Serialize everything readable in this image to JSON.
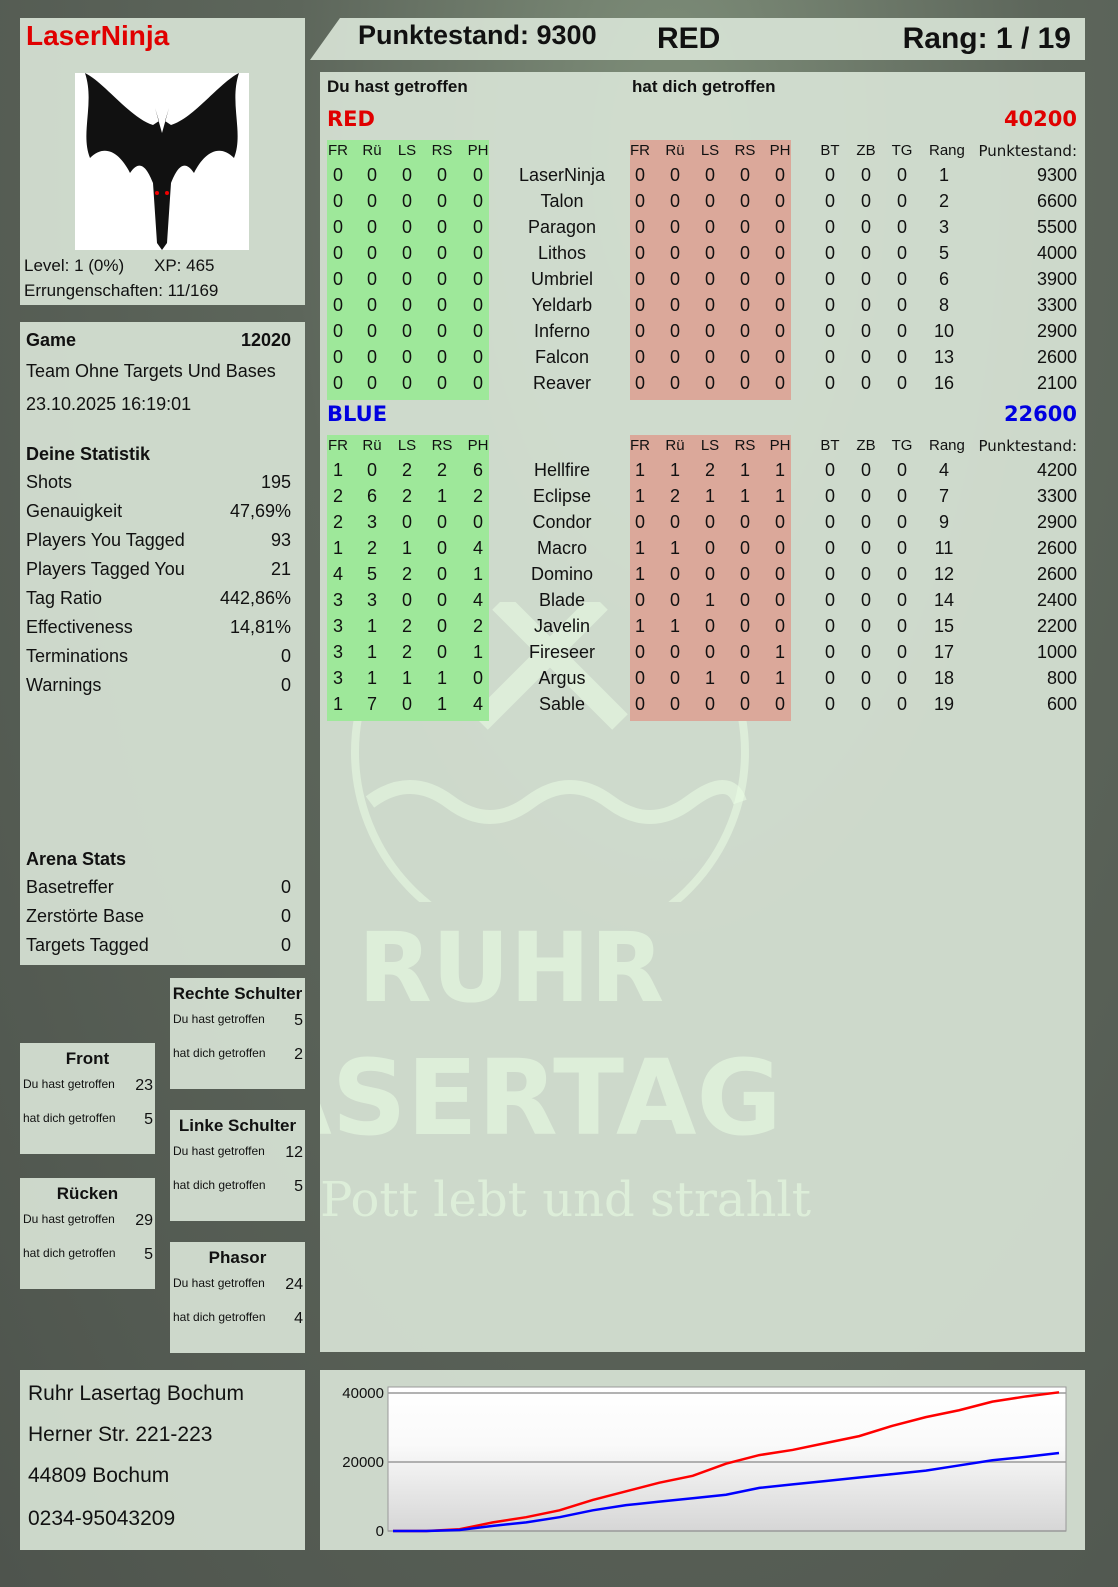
{
  "player": {
    "name": "LaserNinja",
    "level": "Level: 1 (0%)",
    "xp": "XP: 465",
    "achievements": "Errungenschaften: 11/169"
  },
  "header": {
    "score": "Punktestand: 9300",
    "team": "RED",
    "rank": "Rang: 1 / 19"
  },
  "game": {
    "label": "Game",
    "id": "12020",
    "mode": "Team Ohne Targets Und Bases",
    "datetime": "23.10.2025 16:19:01"
  },
  "stats": {
    "title": "Deine Statistik",
    "items": [
      {
        "label": "Shots",
        "value": "195"
      },
      {
        "label": "Genauigkeit",
        "value": "47,69%"
      },
      {
        "label": "Players You Tagged",
        "value": "93"
      },
      {
        "label": "Players Tagged You",
        "value": "21"
      },
      {
        "label": "Tag Ratio",
        "value": "442,86%"
      },
      {
        "label": "Effectiveness",
        "value": "14,81%"
      },
      {
        "label": "Terminations",
        "value": "0"
      },
      {
        "label": "Warnings",
        "value": "0"
      }
    ]
  },
  "arena": {
    "title": "Arena Stats",
    "items": [
      {
        "label": "Basetreffer",
        "value": "0"
      },
      {
        "label": "Zerstörte Base",
        "value": "0"
      },
      {
        "label": "Targets Tagged",
        "value": "0"
      }
    ]
  },
  "zones": [
    {
      "name": "Rechte Schulter",
      "hit_label": "Du hast getroffen",
      "hit": "5",
      "got_label": "hat dich getroffen",
      "got": "2"
    },
    {
      "name": "Front",
      "hit_label": "Du hast getroffen",
      "hit": "23",
      "got_label": "hat dich getroffen",
      "got": "5"
    },
    {
      "name": "Linke Schulter",
      "hit_label": "Du hast getroffen",
      "hit": "12",
      "got_label": "hat dich getroffen",
      "got": "5"
    },
    {
      "name": "Rücken",
      "hit_label": "Du hast getroffen",
      "hit": "29",
      "got_label": "hat dich getroffen",
      "got": "5"
    },
    {
      "name": "Phasor",
      "hit_label": "Du hast getroffen",
      "hit": "24",
      "got_label": "hat dich getroffen",
      "got": "4"
    }
  ],
  "address": [
    "Ruhr Lasertag Bochum",
    "Herner Str. 221-223",
    "44809 Bochum",
    "0234-95043209"
  ],
  "table": {
    "you_hit": "Du hast getroffen",
    "hit_you": "hat dich getroffen",
    "cols": [
      "FR",
      "Rü",
      "LS",
      "RS",
      "PH"
    ],
    "extra_cols": [
      "BT",
      "ZB",
      "TG",
      "Rang",
      "Punktestand:"
    ],
    "teams": [
      {
        "name": "RED",
        "total": "40200",
        "color": "#e00000",
        "players": [
          {
            "name": "LaserNinja",
            "hit": [
              "0",
              "0",
              "0",
              "0",
              "0"
            ],
            "got": [
              "0",
              "0",
              "0",
              "0",
              "0"
            ],
            "extra": [
              "0",
              "0",
              "0",
              "1",
              "9300"
            ]
          },
          {
            "name": "Talon",
            "hit": [
              "0",
              "0",
              "0",
              "0",
              "0"
            ],
            "got": [
              "0",
              "0",
              "0",
              "0",
              "0"
            ],
            "extra": [
              "0",
              "0",
              "0",
              "2",
              "6600"
            ]
          },
          {
            "name": "Paragon",
            "hit": [
              "0",
              "0",
              "0",
              "0",
              "0"
            ],
            "got": [
              "0",
              "0",
              "0",
              "0",
              "0"
            ],
            "extra": [
              "0",
              "0",
              "0",
              "3",
              "5500"
            ]
          },
          {
            "name": "Lithos",
            "hit": [
              "0",
              "0",
              "0",
              "0",
              "0"
            ],
            "got": [
              "0",
              "0",
              "0",
              "0",
              "0"
            ],
            "extra": [
              "0",
              "0",
              "0",
              "5",
              "4000"
            ]
          },
          {
            "name": "Umbriel",
            "hit": [
              "0",
              "0",
              "0",
              "0",
              "0"
            ],
            "got": [
              "0",
              "0",
              "0",
              "0",
              "0"
            ],
            "extra": [
              "0",
              "0",
              "0",
              "6",
              "3900"
            ]
          },
          {
            "name": "Yeldarb",
            "hit": [
              "0",
              "0",
              "0",
              "0",
              "0"
            ],
            "got": [
              "0",
              "0",
              "0",
              "0",
              "0"
            ],
            "extra": [
              "0",
              "0",
              "0",
              "8",
              "3300"
            ]
          },
          {
            "name": "Inferno",
            "hit": [
              "0",
              "0",
              "0",
              "0",
              "0"
            ],
            "got": [
              "0",
              "0",
              "0",
              "0",
              "0"
            ],
            "extra": [
              "0",
              "0",
              "0",
              "10",
              "2900"
            ]
          },
          {
            "name": "Falcon",
            "hit": [
              "0",
              "0",
              "0",
              "0",
              "0"
            ],
            "got": [
              "0",
              "0",
              "0",
              "0",
              "0"
            ],
            "extra": [
              "0",
              "0",
              "0",
              "13",
              "2600"
            ]
          },
          {
            "name": "Reaver",
            "hit": [
              "0",
              "0",
              "0",
              "0",
              "0"
            ],
            "got": [
              "0",
              "0",
              "0",
              "0",
              "0"
            ],
            "extra": [
              "0",
              "0",
              "0",
              "16",
              "2100"
            ]
          }
        ]
      },
      {
        "name": "BLUE",
        "total": "22600",
        "color": "#0000e0",
        "players": [
          {
            "name": "Hellfire",
            "hit": [
              "1",
              "0",
              "2",
              "2",
              "6"
            ],
            "got": [
              "1",
              "1",
              "2",
              "1",
              "1"
            ],
            "extra": [
              "0",
              "0",
              "0",
              "4",
              "4200"
            ]
          },
          {
            "name": "Eclipse",
            "hit": [
              "2",
              "6",
              "2",
              "1",
              "2"
            ],
            "got": [
              "1",
              "2",
              "1",
              "1",
              "1"
            ],
            "extra": [
              "0",
              "0",
              "0",
              "7",
              "3300"
            ]
          },
          {
            "name": "Condor",
            "hit": [
              "2",
              "3",
              "0",
              "0",
              "0"
            ],
            "got": [
              "0",
              "0",
              "0",
              "0",
              "0"
            ],
            "extra": [
              "0",
              "0",
              "0",
              "9",
              "2900"
            ]
          },
          {
            "name": "Macro",
            "hit": [
              "1",
              "2",
              "1",
              "0",
              "4"
            ],
            "got": [
              "1",
              "1",
              "0",
              "0",
              "0"
            ],
            "extra": [
              "0",
              "0",
              "0",
              "11",
              "2600"
            ]
          },
          {
            "name": "Domino",
            "hit": [
              "4",
              "5",
              "2",
              "0",
              "1"
            ],
            "got": [
              "1",
              "0",
              "0",
              "0",
              "0"
            ],
            "extra": [
              "0",
              "0",
              "0",
              "12",
              "2600"
            ]
          },
          {
            "name": "Blade",
            "hit": [
              "3",
              "3",
              "0",
              "0",
              "4"
            ],
            "got": [
              "0",
              "0",
              "1",
              "0",
              "0"
            ],
            "extra": [
              "0",
              "0",
              "0",
              "14",
              "2400"
            ]
          },
          {
            "name": "Javelin",
            "hit": [
              "3",
              "1",
              "2",
              "0",
              "2"
            ],
            "got": [
              "1",
              "1",
              "0",
              "0",
              "0"
            ],
            "extra": [
              "0",
              "0",
              "0",
              "15",
              "2200"
            ]
          },
          {
            "name": "Fireseer",
            "hit": [
              "3",
              "1",
              "2",
              "0",
              "1"
            ],
            "got": [
              "0",
              "0",
              "0",
              "0",
              "1"
            ],
            "extra": [
              "0",
              "0",
              "0",
              "17",
              "1000"
            ]
          },
          {
            "name": "Argus",
            "hit": [
              "3",
              "1",
              "1",
              "1",
              "0"
            ],
            "got": [
              "0",
              "0",
              "1",
              "0",
              "1"
            ],
            "extra": [
              "0",
              "0",
              "0",
              "18",
              "800"
            ]
          },
          {
            "name": "Sable",
            "hit": [
              "1",
              "7",
              "0",
              "1",
              "4"
            ],
            "got": [
              "0",
              "0",
              "0",
              "0",
              "0"
            ],
            "extra": [
              "0",
              "0",
              "0",
              "19",
              "600"
            ]
          }
        ]
      }
    ]
  },
  "logo": {
    "line1": "RUHR",
    "line2": "LASERTAG",
    "slogan": "Der Pott lebt und strahlt"
  },
  "chart_data": {
    "type": "line",
    "ylim": [
      0,
      40000
    ],
    "yticks": [
      "0",
      "20000",
      "40000"
    ],
    "grid": true,
    "series": [
      {
        "color": "#ff0000",
        "values": [
          0,
          0,
          500,
          2500,
          4000,
          6000,
          9000,
          11500,
          14000,
          16000,
          19500,
          22000,
          23500,
          25500,
          27500,
          30500,
          33000,
          35000,
          37500,
          39000,
          40200
        ]
      },
      {
        "color": "#0000ff",
        "values": [
          0,
          0,
          300,
          1500,
          2500,
          4000,
          6000,
          7500,
          8500,
          9500,
          10500,
          12500,
          13500,
          14500,
          15500,
          16500,
          17500,
          19000,
          20500,
          21500,
          22600
        ]
      }
    ]
  }
}
